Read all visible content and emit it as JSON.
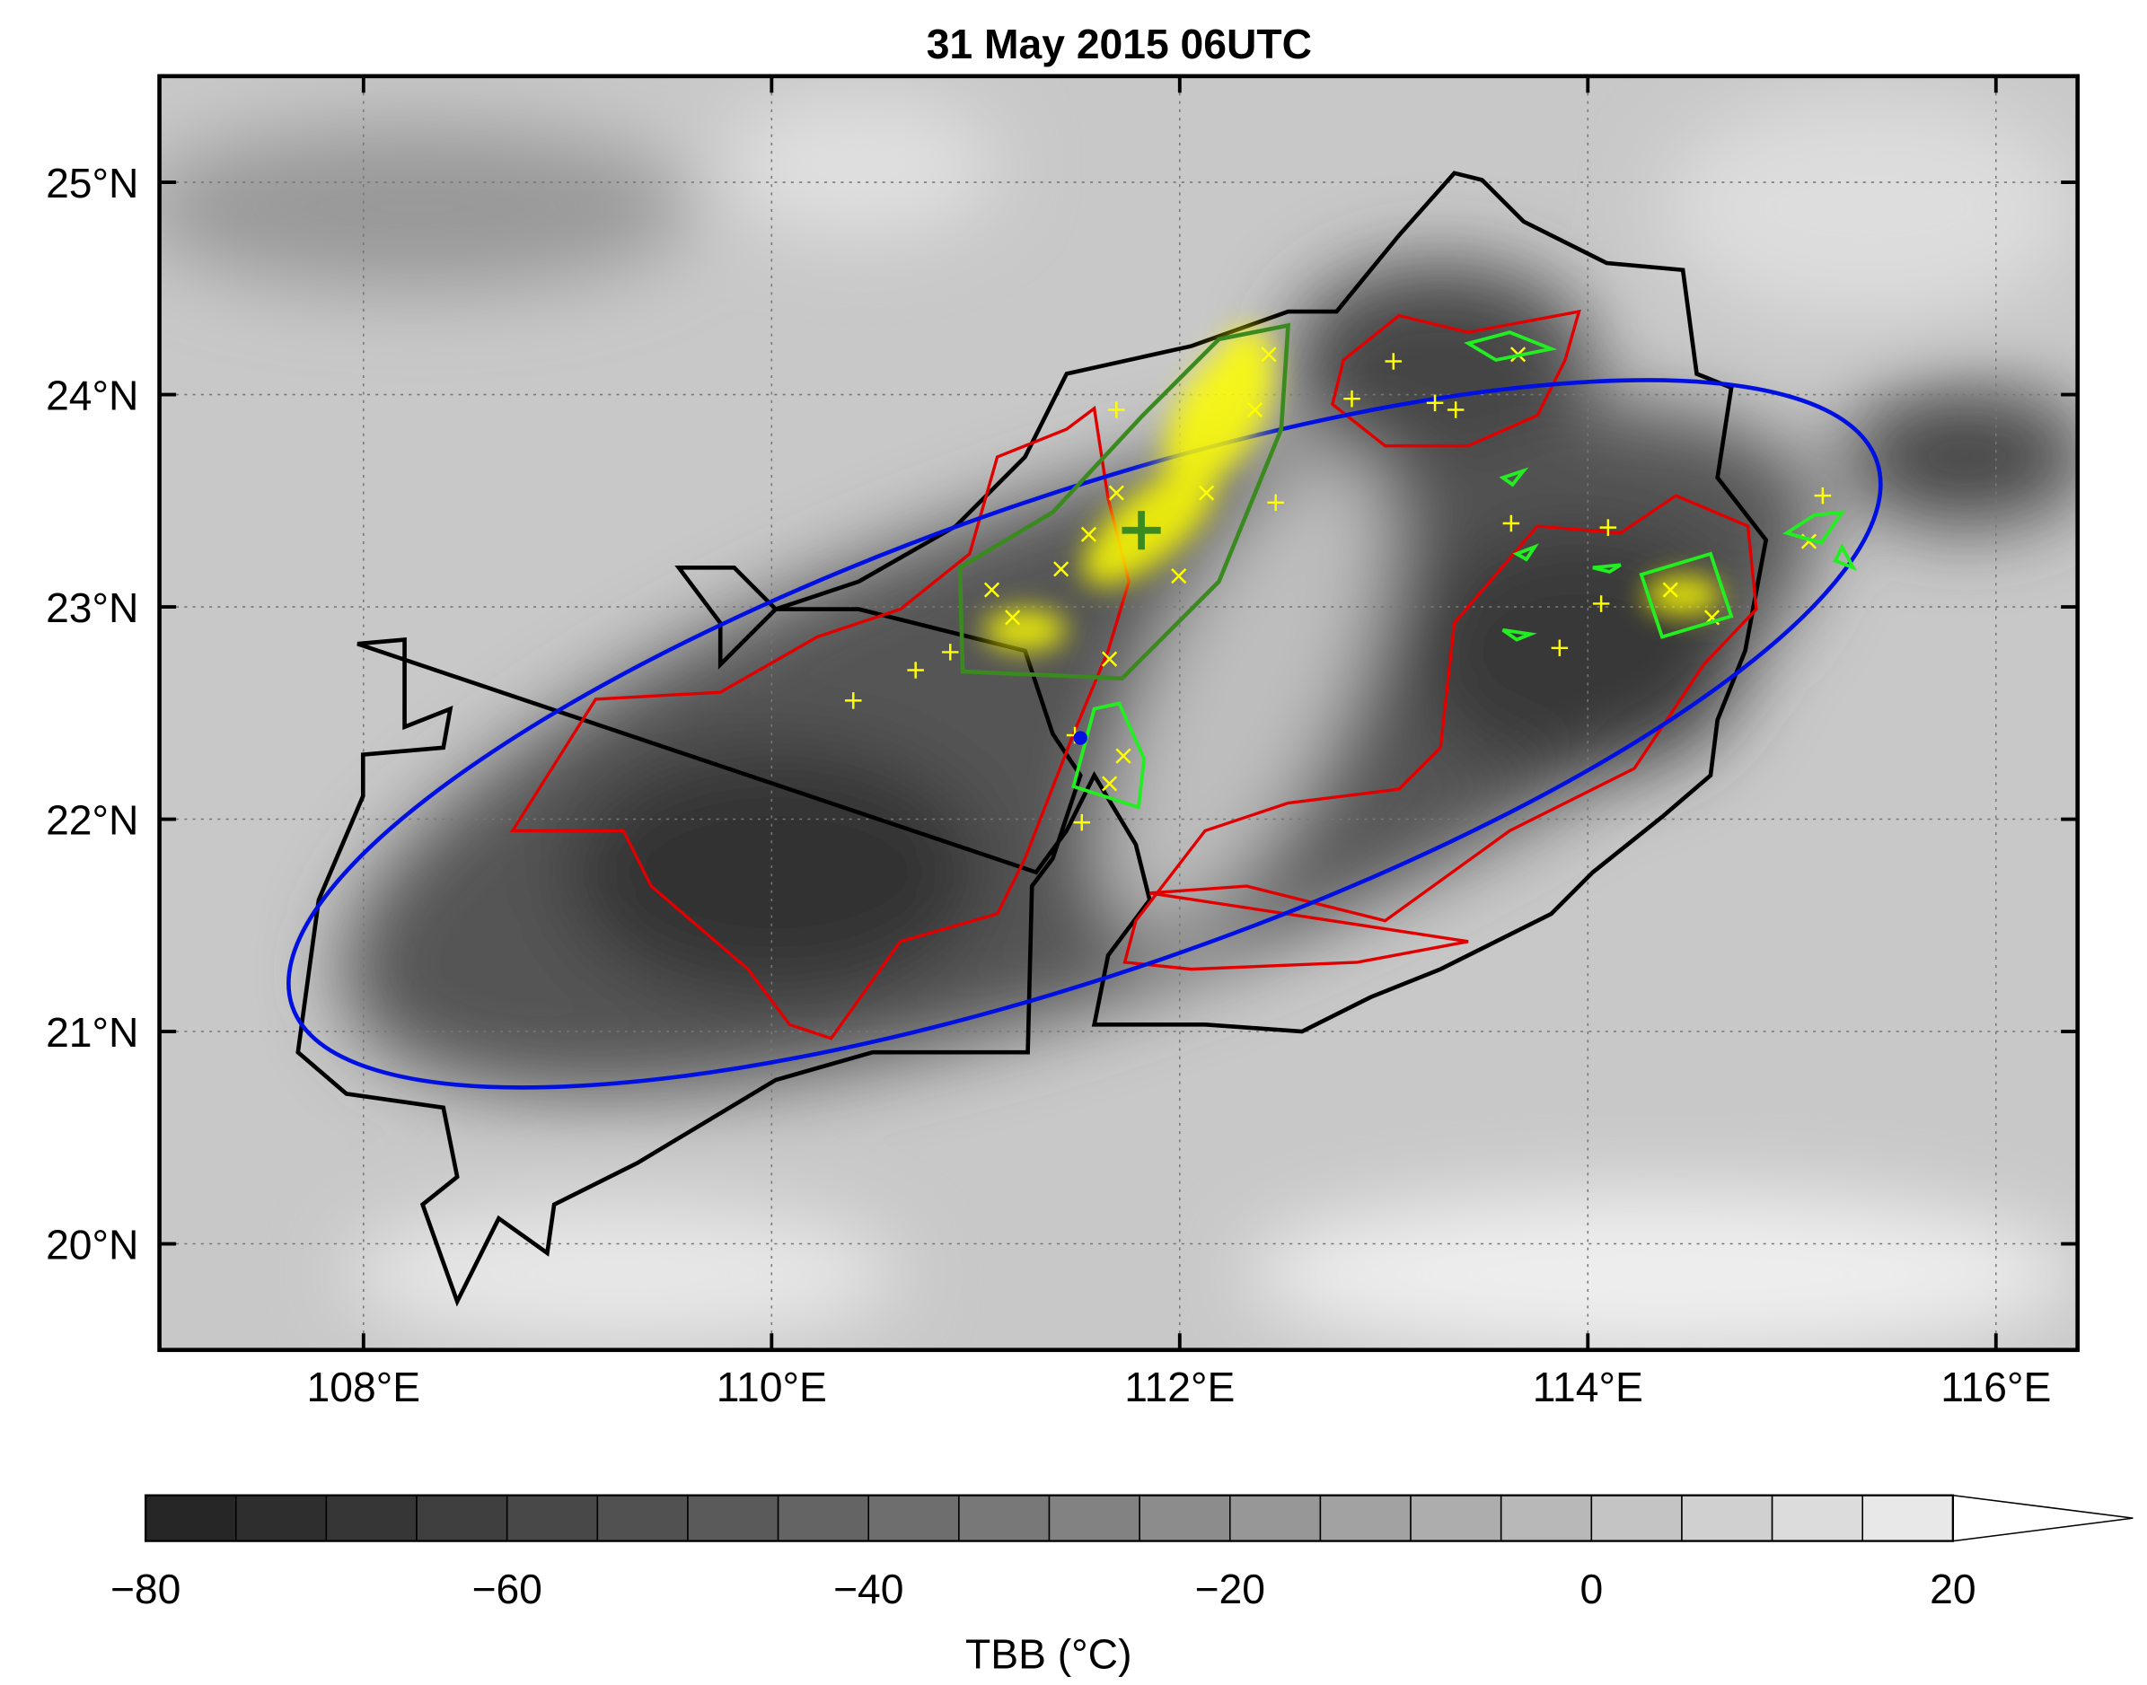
{
  "title": "31 May 2015 06UTC",
  "map": {
    "xlim": [
      107,
      116.4
    ],
    "ylim": [
      19.5,
      25.5
    ],
    "xticks": [
      {
        "value": 108,
        "label": "108°E"
      },
      {
        "value": 110,
        "label": "110°E"
      },
      {
        "value": 112,
        "label": "112°E"
      },
      {
        "value": 114,
        "label": "114°E"
      },
      {
        "value": 116,
        "label": "116°E"
      }
    ],
    "yticks": [
      {
        "value": 20,
        "label": "20°N"
      },
      {
        "value": 21,
        "label": "21°N"
      },
      {
        "value": 22,
        "label": "22°N"
      },
      {
        "value": 23,
        "label": "23°N"
      },
      {
        "value": 24,
        "label": "24°N"
      },
      {
        "value": 25,
        "label": "25°N"
      }
    ],
    "grid": true
  },
  "colorbar": {
    "label": "TBB (°C)",
    "clim": [
      -80,
      20
    ],
    "levels": [
      -80,
      -75,
      -70,
      -65,
      -60,
      -55,
      -50,
      -45,
      -40,
      -35,
      -30,
      -25,
      -20,
      -15,
      -10,
      -5,
      0,
      5,
      10,
      15,
      20
    ],
    "colors": [
      "#262626",
      "#2e2e2e",
      "#363636",
      "#3f3f3f",
      "#484848",
      "#515151",
      "#5a5a5a",
      "#646464",
      "#6e6e6e",
      "#787878",
      "#828282",
      "#8c8c8c",
      "#979797",
      "#a2a2a2",
      "#adadad",
      "#b8b8b8",
      "#c4c4c4",
      "#d0d0d0",
      "#dcdcdc",
      "#e8e8e8"
    ],
    "extend": "max",
    "ticks": [
      {
        "value": -80,
        "label": "−80"
      },
      {
        "value": -60,
        "label": "−60"
      },
      {
        "value": -40,
        "label": "−40"
      },
      {
        "value": -20,
        "label": "−20"
      },
      0,
      20
    ]
  }
}
